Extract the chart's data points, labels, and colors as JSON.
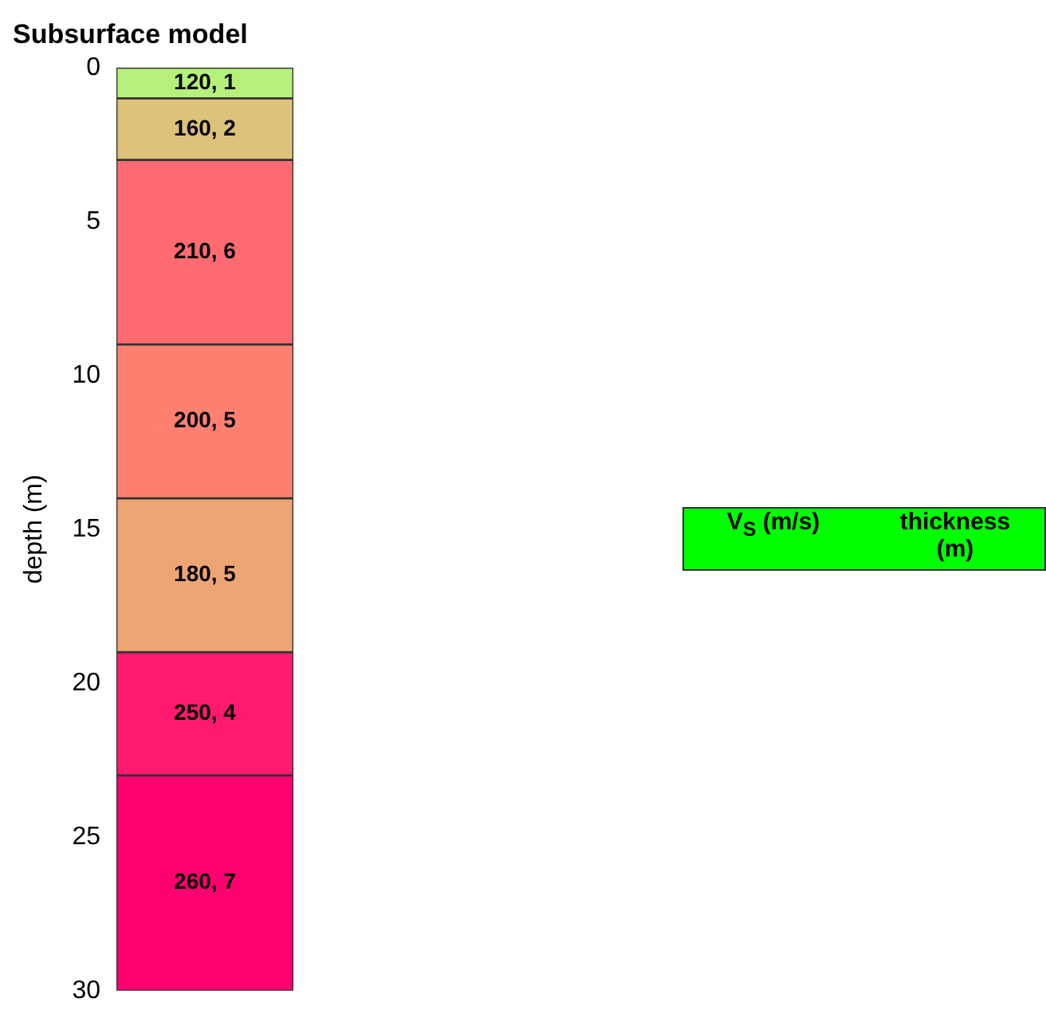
{
  "chart_data": {
    "type": "bar",
    "title": "Subsurface model",
    "ylabel": "depth (m)",
    "categories": [
      null
    ],
    "stacked": true,
    "ylim": [
      30,
      0
    ],
    "yticks": [
      0,
      5,
      10,
      15,
      20,
      25,
      30
    ],
    "grid": false,
    "legend": false,
    "series": [
      {
        "color": "#b5f07a",
        "values": [
          1
        ],
        "value_labels": [
          "120, 1"
        ]
      },
      {
        "color": "#dcc27a",
        "values": [
          2
        ],
        "value_labels": [
          "160, 2"
        ]
      },
      {
        "color": "#ff6b70",
        "values": [
          6
        ],
        "value_labels": [
          "210, 6"
        ]
      },
      {
        "color": "#ff8070",
        "values": [
          5
        ],
        "value_labels": [
          "200, 5"
        ]
      },
      {
        "color": "#eea574",
        "values": [
          5
        ],
        "value_labels": [
          "180, 5"
        ]
      },
      {
        "color": "#ff1a70",
        "values": [
          4
        ],
        "value_labels": [
          "250, 4"
        ]
      },
      {
        "color": "#ff0070",
        "values": [
          7
        ],
        "value_labels": [
          "260, 7"
        ]
      }
    ],
    "annotations": [
      "V$_{S}$ (m/s)",
      "thickness (m)"
    ]
  }
}
